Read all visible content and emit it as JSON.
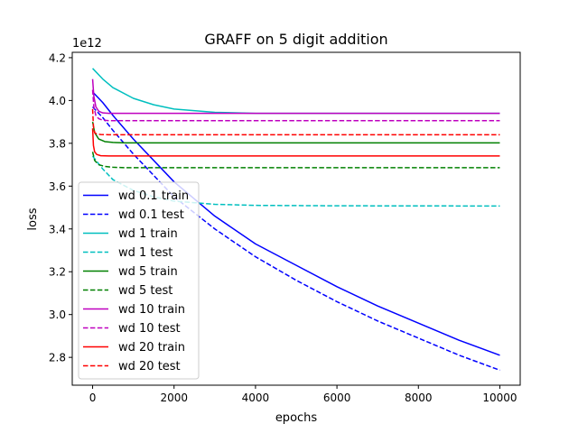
{
  "chart_data": {
    "type": "line",
    "title": "GRAFF on 5 digit addition",
    "xlabel": "epochs",
    "ylabel": "loss",
    "offset_text": "1e12",
    "xlim": [
      -500,
      10500
    ],
    "ylim": [
      2.67,
      4.225
    ],
    "xticks": [
      0,
      2000,
      4000,
      6000,
      8000,
      10000
    ],
    "xtick_labels": [
      "0",
      "2000",
      "4000",
      "6000",
      "8000",
      "10000"
    ],
    "yticks": [
      2.8,
      3.0,
      3.2,
      3.4,
      3.6,
      3.8,
      4.0,
      4.2
    ],
    "ytick_labels": [
      "2.8",
      "3.0",
      "3.2",
      "3.4",
      "3.6",
      "3.8",
      "4.0",
      "4.2"
    ],
    "y_scale_note": "values in units of 1e12",
    "grid": false,
    "legend_position": "lower-left",
    "series": [
      {
        "name": "wd 0.1 train",
        "color": "#0000ff",
        "dash": "solid",
        "x": [
          0,
          250,
          500,
          1000,
          2000,
          3000,
          4000,
          5000,
          6000,
          7000,
          8000,
          9000,
          10000
        ],
        "y": [
          4.04,
          3.99,
          3.93,
          3.82,
          3.62,
          3.46,
          3.33,
          3.23,
          3.13,
          3.04,
          2.96,
          2.88,
          2.81
        ]
      },
      {
        "name": "wd 0.1 test",
        "color": "#0000ff",
        "dash": "dashed",
        "x": [
          0,
          250,
          500,
          1000,
          2000,
          3000,
          4000,
          5000,
          6000,
          7000,
          8000,
          9000,
          10000
        ],
        "y": [
          3.97,
          3.92,
          3.86,
          3.75,
          3.55,
          3.4,
          3.27,
          3.16,
          3.06,
          2.97,
          2.89,
          2.81,
          2.74
        ]
      },
      {
        "name": "wd 1 train",
        "color": "#00bfbf",
        "dash": "solid",
        "x": [
          0,
          250,
          500,
          1000,
          1500,
          2000,
          3000,
          4000,
          6000,
          10000
        ],
        "y": [
          4.15,
          4.1,
          4.06,
          4.01,
          3.98,
          3.96,
          3.945,
          3.94,
          3.94,
          3.94
        ]
      },
      {
        "name": "wd 1 test",
        "color": "#00bfbf",
        "dash": "dashed",
        "x": [
          0,
          250,
          500,
          1000,
          1500,
          2000,
          3000,
          4000,
          6000,
          10000
        ],
        "y": [
          3.74,
          3.68,
          3.63,
          3.58,
          3.55,
          3.53,
          3.515,
          3.51,
          3.508,
          3.507
        ]
      },
      {
        "name": "wd 5 train",
        "color": "#008000",
        "dash": "solid",
        "x": [
          0,
          50,
          150,
          300,
          500,
          800,
          1200,
          2000,
          10000
        ],
        "y": [
          3.9,
          3.85,
          3.82,
          3.808,
          3.804,
          3.802,
          3.802,
          3.802,
          3.802
        ]
      },
      {
        "name": "wd 5 test",
        "color": "#008000",
        "dash": "dashed",
        "x": [
          0,
          50,
          150,
          300,
          500,
          800,
          1200,
          2000,
          10000
        ],
        "y": [
          3.76,
          3.72,
          3.7,
          3.692,
          3.688,
          3.686,
          3.686,
          3.686,
          3.686
        ]
      },
      {
        "name": "wd 10 train",
        "color": "#bf00bf",
        "dash": "solid",
        "x": [
          0,
          30,
          80,
          150,
          250,
          400,
          700,
          1000,
          10000
        ],
        "y": [
          4.1,
          4.02,
          3.97,
          3.95,
          3.942,
          3.94,
          3.94,
          3.94,
          3.94
        ]
      },
      {
        "name": "wd 10 test",
        "color": "#bf00bf",
        "dash": "dashed",
        "x": [
          0,
          30,
          80,
          150,
          250,
          400,
          700,
          1000,
          10000
        ],
        "y": [
          4.05,
          3.97,
          3.93,
          3.915,
          3.908,
          3.906,
          3.906,
          3.906,
          3.906
        ]
      },
      {
        "name": "wd 20 train",
        "color": "#ff0000",
        "dash": "solid",
        "x": [
          0,
          20,
          50,
          100,
          200,
          400,
          1000,
          10000
        ],
        "y": [
          3.87,
          3.79,
          3.76,
          3.748,
          3.742,
          3.741,
          3.741,
          3.741
        ]
      },
      {
        "name": "wd 20 test",
        "color": "#ff0000",
        "dash": "dashed",
        "x": [
          0,
          20,
          50,
          100,
          200,
          400,
          1000,
          10000
        ],
        "y": [
          3.96,
          3.88,
          3.85,
          3.843,
          3.841,
          3.84,
          3.84,
          3.84
        ]
      }
    ]
  }
}
